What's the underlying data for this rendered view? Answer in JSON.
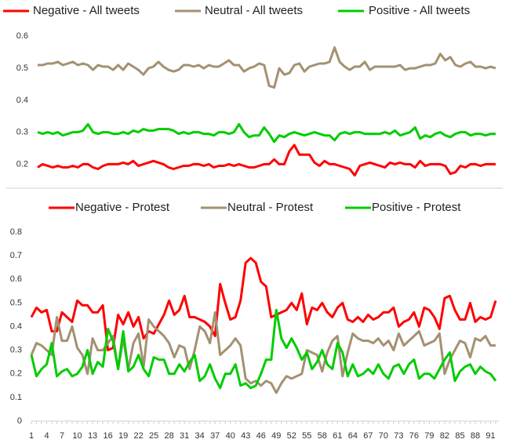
{
  "chart_data": [
    {
      "type": "line",
      "ylim": [
        0.125,
        0.64
      ],
      "yticks": [
        0.2,
        0.3,
        0.4,
        0.5,
        0.6
      ],
      "series": [
        {
          "name": "Negative - All tweets",
          "color": "#ff0000",
          "values": [
            0.19,
            0.2,
            0.195,
            0.19,
            0.195,
            0.19,
            0.19,
            0.195,
            0.19,
            0.2,
            0.2,
            0.19,
            0.185,
            0.195,
            0.2,
            0.2,
            0.2,
            0.205,
            0.2,
            0.21,
            0.195,
            0.2,
            0.205,
            0.21,
            0.205,
            0.2,
            0.19,
            0.185,
            0.19,
            0.195,
            0.195,
            0.2,
            0.2,
            0.195,
            0.2,
            0.19,
            0.195,
            0.195,
            0.2,
            0.195,
            0.2,
            0.195,
            0.19,
            0.19,
            0.195,
            0.2,
            0.2,
            0.215,
            0.2,
            0.2,
            0.24,
            0.26,
            0.23,
            0.23,
            0.23,
            0.205,
            0.195,
            0.21,
            0.2,
            0.2,
            0.195,
            0.19,
            0.185,
            0.165,
            0.195,
            0.2,
            0.205,
            0.2,
            0.195,
            0.19,
            0.205,
            0.2,
            0.205,
            0.2,
            0.2,
            0.19,
            0.21,
            0.195,
            0.2,
            0.2,
            0.2,
            0.195,
            0.17,
            0.175,
            0.195,
            0.19,
            0.2,
            0.2,
            0.195,
            0.2,
            0.2,
            0.2
          ]
        },
        {
          "name": "Neutral - All tweets",
          "color": "#a39170",
          "values": [
            0.51,
            0.51,
            0.515,
            0.515,
            0.52,
            0.51,
            0.515,
            0.52,
            0.51,
            0.515,
            0.51,
            0.495,
            0.51,
            0.505,
            0.505,
            0.495,
            0.51,
            0.495,
            0.515,
            0.505,
            0.495,
            0.48,
            0.5,
            0.505,
            0.52,
            0.505,
            0.495,
            0.49,
            0.495,
            0.51,
            0.51,
            0.505,
            0.51,
            0.5,
            0.51,
            0.505,
            0.505,
            0.515,
            0.525,
            0.51,
            0.51,
            0.49,
            0.5,
            0.505,
            0.515,
            0.51,
            0.445,
            0.44,
            0.5,
            0.48,
            0.485,
            0.51,
            0.515,
            0.49,
            0.505,
            0.51,
            0.515,
            0.515,
            0.52,
            0.565,
            0.52,
            0.505,
            0.495,
            0.505,
            0.505,
            0.52,
            0.495,
            0.505,
            0.505,
            0.505,
            0.505,
            0.505,
            0.51,
            0.495,
            0.5,
            0.5,
            0.505,
            0.51,
            0.51,
            0.515,
            0.545,
            0.525,
            0.535,
            0.51,
            0.505,
            0.515,
            0.52,
            0.505,
            0.505,
            0.5,
            0.505,
            0.5
          ]
        },
        {
          "name": "Positive - All tweets",
          "color": "#00cc00",
          "values": [
            0.3,
            0.295,
            0.3,
            0.295,
            0.3,
            0.29,
            0.295,
            0.3,
            0.3,
            0.305,
            0.325,
            0.3,
            0.295,
            0.3,
            0.3,
            0.295,
            0.295,
            0.3,
            0.295,
            0.305,
            0.3,
            0.31,
            0.305,
            0.305,
            0.31,
            0.31,
            0.31,
            0.305,
            0.295,
            0.3,
            0.295,
            0.3,
            0.3,
            0.295,
            0.295,
            0.29,
            0.3,
            0.3,
            0.295,
            0.3,
            0.325,
            0.3,
            0.285,
            0.29,
            0.29,
            0.315,
            0.295,
            0.27,
            0.29,
            0.285,
            0.295,
            0.3,
            0.295,
            0.29,
            0.295,
            0.3,
            0.295,
            0.29,
            0.29,
            0.275,
            0.295,
            0.3,
            0.295,
            0.3,
            0.3,
            0.295,
            0.295,
            0.295,
            0.295,
            0.3,
            0.295,
            0.305,
            0.29,
            0.295,
            0.3,
            0.315,
            0.28,
            0.29,
            0.285,
            0.295,
            0.3,
            0.29,
            0.285,
            0.295,
            0.3,
            0.3,
            0.29,
            0.295,
            0.295,
            0.29,
            0.295,
            0.295
          ]
        }
      ]
    },
    {
      "type": "line",
      "ylim": [
        0,
        0.82
      ],
      "yticks": [
        0,
        0.1,
        0.2,
        0.3,
        0.4,
        0.5,
        0.6,
        0.7,
        0.8
      ],
      "categories": [
        1,
        null,
        null,
        4,
        null,
        null,
        7,
        null,
        null,
        10,
        null,
        null,
        13,
        null,
        null,
        16,
        null,
        null,
        19,
        null,
        null,
        22,
        null,
        null,
        25,
        null,
        null,
        28,
        null,
        null,
        31,
        null,
        null,
        34,
        null,
        null,
        37,
        null,
        null,
        40,
        null,
        null,
        43,
        null,
        null,
        46,
        null,
        null,
        49,
        null,
        null,
        52,
        null,
        null,
        55,
        null,
        null,
        58,
        null,
        null,
        61,
        null,
        null,
        64,
        null,
        null,
        67,
        null,
        null,
        70,
        null,
        null,
        73,
        null,
        null,
        76,
        null,
        null,
        79,
        null,
        null,
        82,
        null,
        null,
        85,
        null,
        null,
        88,
        null,
        null,
        91,
        null
      ],
      "series": [
        {
          "name": "Negative - Protest",
          "color": "#ff0000",
          "values": [
            0.44,
            0.48,
            0.46,
            0.47,
            0.38,
            0.38,
            0.46,
            0.44,
            0.42,
            0.51,
            0.49,
            0.49,
            0.46,
            0.46,
            0.49,
            0.3,
            0.31,
            0.45,
            0.41,
            0.46,
            0.4,
            0.44,
            0.35,
            0.38,
            0.37,
            0.41,
            0.45,
            0.51,
            0.45,
            0.47,
            0.53,
            0.44,
            0.44,
            0.43,
            0.42,
            0.4,
            0.36,
            0.58,
            0.5,
            0.43,
            0.44,
            0.51,
            0.67,
            0.69,
            0.67,
            0.59,
            0.57,
            0.44,
            0.45,
            0.46,
            0.47,
            0.5,
            0.47,
            0.54,
            0.41,
            0.48,
            0.47,
            0.5,
            0.46,
            0.44,
            0.48,
            0.5,
            0.43,
            0.42,
            0.44,
            0.42,
            0.45,
            0.43,
            0.44,
            0.46,
            0.46,
            0.48,
            0.4,
            0.42,
            0.43,
            0.46,
            0.4,
            0.48,
            0.47,
            0.44,
            0.39,
            0.52,
            0.53,
            0.47,
            0.43,
            0.43,
            0.5,
            0.42,
            0.44,
            0.43,
            0.44,
            0.51
          ]
        },
        {
          "name": "Neutral -  Protest",
          "color": "#a39170",
          "values": [
            0.28,
            0.33,
            0.32,
            0.3,
            0.28,
            0.44,
            0.34,
            0.34,
            0.4,
            0.31,
            0.28,
            0.2,
            0.35,
            0.3,
            0.3,
            0.33,
            0.36,
            0.22,
            0.35,
            0.22,
            0.33,
            0.37,
            0.23,
            0.43,
            0.4,
            0.38,
            0.36,
            0.33,
            0.27,
            0.32,
            0.31,
            0.22,
            0.3,
            0.4,
            0.38,
            0.33,
            0.46,
            0.28,
            0.3,
            0.32,
            0.35,
            0.32,
            0.18,
            0.16,
            0.17,
            0.15,
            0.17,
            0.16,
            0.12,
            0.16,
            0.19,
            0.18,
            0.19,
            0.2,
            0.3,
            0.29,
            0.28,
            0.21,
            0.29,
            0.34,
            0.36,
            0.19,
            0.29,
            0.37,
            0.35,
            0.34,
            0.34,
            0.33,
            0.35,
            0.32,
            0.34,
            0.3,
            0.37,
            0.32,
            0.34,
            0.36,
            0.38,
            0.32,
            0.33,
            0.34,
            0.37,
            0.2,
            0.26,
            0.3,
            0.34,
            0.33,
            0.27,
            0.35,
            0.34,
            0.36,
            0.32,
            0.32
          ]
        },
        {
          "name": "Positive - Protest",
          "color": "#00cc00",
          "values": [
            0.28,
            0.19,
            0.22,
            0.24,
            0.33,
            0.19,
            0.21,
            0.22,
            0.19,
            0.2,
            0.23,
            0.3,
            0.2,
            0.25,
            0.23,
            0.39,
            0.34,
            0.22,
            0.38,
            0.21,
            0.23,
            0.28,
            0.22,
            0.19,
            0.27,
            0.26,
            0.26,
            0.2,
            0.2,
            0.24,
            0.21,
            0.25,
            0.28,
            0.17,
            0.19,
            0.24,
            0.18,
            0.14,
            0.2,
            0.2,
            0.24,
            0.15,
            0.16,
            0.14,
            0.15,
            0.2,
            0.26,
            0.26,
            0.47,
            0.35,
            0.31,
            0.35,
            0.31,
            0.26,
            0.29,
            0.22,
            0.25,
            0.3,
            0.24,
            0.22,
            0.33,
            0.29,
            0.19,
            0.24,
            0.19,
            0.2,
            0.22,
            0.2,
            0.24,
            0.2,
            0.18,
            0.23,
            0.24,
            0.2,
            0.24,
            0.26,
            0.18,
            0.2,
            0.2,
            0.18,
            0.22,
            0.26,
            0.29,
            0.17,
            0.21,
            0.23,
            0.24,
            0.2,
            0.23,
            0.21,
            0.2,
            0.17
          ]
        }
      ]
    }
  ]
}
